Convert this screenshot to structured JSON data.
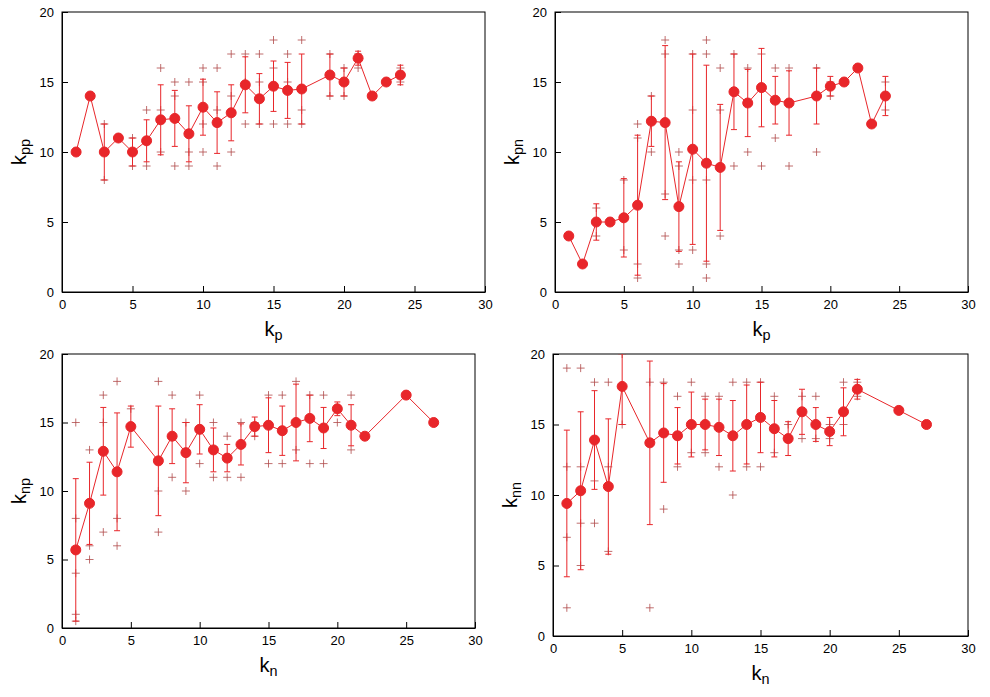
{
  "chart_data": [
    {
      "type": "line",
      "x_label": "kp",
      "y_label": "kpp",
      "color": "#e8262a",
      "marker": "circle",
      "xlim": [
        0,
        30
      ],
      "ylim": [
        0,
        20
      ],
      "xticks": [
        0,
        5,
        10,
        15,
        20,
        25,
        30
      ],
      "yticks": [
        0,
        5,
        10,
        15,
        20
      ],
      "x": [
        1,
        2,
        3,
        4,
        5,
        6,
        7,
        8,
        9,
        10,
        11,
        12,
        13,
        14,
        15,
        16,
        17,
        19,
        20,
        21,
        22,
        23,
        24
      ],
      "values": [
        10,
        14,
        10,
        11,
        10,
        10.8,
        12.3,
        12.4,
        11.3,
        13.2,
        12.1,
        12.8,
        14.8,
        13.8,
        14.7,
        14.4,
        14.5,
        15.5,
        15,
        16.7,
        14,
        15,
        15.5
      ],
      "errors": [
        0,
        0,
        2,
        0,
        1,
        1.5,
        2.5,
        2,
        2,
        2,
        2.2,
        2,
        2,
        1.8,
        1.8,
        2,
        2.5,
        1.5,
        1,
        0.5,
        0,
        0,
        0.7
      ],
      "scatter_x": [
        3,
        3,
        5,
        5,
        6,
        6,
        7,
        7,
        7,
        8,
        8,
        8,
        9,
        9,
        9,
        10,
        10,
        10,
        10,
        11,
        11,
        11,
        12,
        12,
        12,
        13,
        13,
        13,
        14,
        14,
        14,
        15,
        15,
        15,
        16,
        16,
        16,
        17,
        17,
        17,
        19,
        19,
        20,
        20,
        21,
        21,
        24,
        24
      ],
      "scatter_y": [
        8,
        12,
        9,
        11,
        9,
        13,
        10,
        16,
        13,
        9,
        15,
        14,
        9,
        15,
        10,
        10,
        15,
        16,
        12,
        9,
        16,
        13,
        10,
        17,
        14,
        12,
        17,
        15,
        12,
        17,
        15,
        12,
        18,
        16,
        12,
        17,
        15,
        12,
        18,
        13,
        14,
        17,
        14,
        16,
        16,
        17,
        15,
        16
      ]
    },
    {
      "type": "line",
      "x_label": "kp",
      "y_label": "kpn",
      "color": "#e8262a",
      "marker": "circle",
      "xlim": [
        0,
        30
      ],
      "ylim": [
        0,
        20
      ],
      "xticks": [
        0,
        5,
        10,
        15,
        20,
        25,
        30
      ],
      "yticks": [
        0,
        5,
        10,
        15,
        20
      ],
      "x": [
        1,
        2,
        3,
        4,
        5,
        6,
        7,
        8,
        9,
        10,
        11,
        12,
        13,
        14,
        15,
        16,
        17,
        19,
        20,
        21,
        22,
        23,
        24
      ],
      "values": [
        4,
        2,
        5,
        5,
        5.3,
        6.2,
        12.2,
        12.1,
        6.1,
        10.2,
        9.2,
        8.9,
        14.3,
        13.5,
        14.6,
        13.7,
        13.5,
        14,
        14.7,
        15,
        16,
        12,
        14
      ],
      "errors": [
        0,
        0,
        1.3,
        0,
        2.8,
        5,
        1.8,
        5.5,
        3.2,
        6.8,
        7,
        4.5,
        2.7,
        2.4,
        2.8,
        1.7,
        2.3,
        2,
        0.7,
        0,
        0,
        0,
        1.4
      ],
      "scatter_x": [
        3,
        3,
        5,
        5,
        6,
        6,
        6,
        6,
        7,
        7,
        8,
        8,
        8,
        8,
        9,
        9,
        9,
        9,
        10,
        10,
        10,
        10,
        11,
        11,
        11,
        11,
        11,
        12,
        12,
        12,
        13,
        13,
        14,
        14,
        15,
        15,
        16,
        16,
        17,
        17,
        19,
        19,
        20,
        20,
        24,
        24
      ],
      "scatter_y": [
        4,
        6,
        3,
        8,
        1,
        2,
        11,
        12,
        10,
        14,
        4,
        7,
        18,
        17,
        2,
        3,
        9,
        10,
        3,
        8,
        17,
        13,
        1,
        2,
        18,
        17,
        8,
        4,
        13,
        16,
        9,
        17,
        10,
        16,
        9,
        17,
        11,
        16,
        9,
        16,
        10,
        16,
        14,
        15,
        13,
        15
      ]
    },
    {
      "type": "line",
      "x_label": "kn",
      "y_label": "knp",
      "color": "#e8262a",
      "marker": "circle",
      "xlim": [
        0,
        30
      ],
      "ylim": [
        0,
        20
      ],
      "xticks": [
        0,
        5,
        10,
        15,
        20,
        25,
        30
      ],
      "yticks": [
        0,
        5,
        10,
        15,
        20
      ],
      "x": [
        1,
        2,
        3,
        4,
        5,
        7,
        8,
        9,
        10,
        11,
        12,
        13,
        14,
        15,
        16,
        17,
        18,
        19,
        20,
        21,
        22,
        25,
        27
      ],
      "values": [
        5.7,
        9.1,
        12.9,
        11.4,
        14.7,
        12.2,
        14,
        12.8,
        14.5,
        13,
        12.4,
        13.4,
        14.7,
        14.8,
        14.4,
        15,
        15.3,
        14.6,
        16,
        14.8,
        14,
        17,
        15
      ],
      "errors": [
        5.2,
        3,
        3.2,
        4.3,
        1.5,
        4,
        2,
        2.2,
        1.8,
        1.6,
        1,
        1.5,
        0.7,
        2,
        1.8,
        2.8,
        1.7,
        1.5,
        0.5,
        1.5,
        0,
        0,
        0
      ],
      "scatter_x": [
        1,
        1,
        1,
        1,
        1,
        2,
        2,
        2,
        3,
        3,
        3,
        4,
        4,
        4,
        5,
        7,
        7,
        7,
        8,
        8,
        9,
        9,
        10,
        10,
        11,
        11,
        12,
        12,
        13,
        13,
        14,
        14,
        15,
        15,
        16,
        16,
        17,
        17,
        18,
        18,
        19,
        19,
        20,
        20,
        21,
        21
      ],
      "scatter_y": [
        0.5,
        1,
        4,
        8,
        15,
        5,
        6,
        13,
        7,
        17,
        15,
        6,
        18,
        8,
        16,
        7,
        18,
        10,
        11,
        17,
        10,
        15,
        12,
        17,
        11,
        15,
        11,
        14,
        11,
        15,
        14,
        15,
        12,
        17,
        12,
        17,
        13,
        18,
        12,
        17,
        12,
        17,
        15,
        16,
        13,
        17
      ]
    },
    {
      "type": "line",
      "x_label": "kn",
      "y_label": "knn",
      "color": "#e8262a",
      "marker": "circle",
      "xlim": [
        0,
        30
      ],
      "ylim": [
        0,
        20
      ],
      "xticks": [
        0,
        5,
        10,
        15,
        20,
        25,
        30
      ],
      "yticks": [
        0,
        5,
        10,
        15,
        20
      ],
      "x": [
        1,
        2,
        3,
        4,
        5,
        7,
        8,
        9,
        10,
        11,
        12,
        13,
        14,
        15,
        16,
        17,
        18,
        19,
        20,
        21,
        22,
        25,
        27
      ],
      "values": [
        9.4,
        10.3,
        13.9,
        10.6,
        17.7,
        13.7,
        14.4,
        14.2,
        15,
        15,
        14.8,
        14.2,
        15,
        15.5,
        14.7,
        14,
        15.9,
        15,
        14.5,
        15.9,
        17.5,
        16,
        15
      ],
      "errors": [
        5.2,
        5.6,
        3.5,
        4.8,
        2.7,
        5.8,
        3.5,
        2,
        2.3,
        1.8,
        2,
        2.5,
        2.8,
        2.5,
        2,
        1.2,
        1.6,
        1.2,
        1,
        1.7,
        0.7,
        0,
        0
      ],
      "scatter_x": [
        1,
        1,
        1,
        1,
        2,
        2,
        2,
        2,
        3,
        3,
        3,
        4,
        4,
        4,
        5,
        5,
        7,
        7,
        8,
        8,
        9,
        9,
        10,
        10,
        11,
        11,
        12,
        12,
        13,
        13,
        14,
        14,
        15,
        15,
        16,
        16,
        17,
        17,
        18,
        18,
        19,
        19,
        20,
        20,
        21,
        21,
        22,
        22
      ],
      "scatter_y": [
        2,
        7,
        12,
        19,
        5,
        8,
        12,
        19,
        8,
        18,
        11,
        6,
        12,
        18,
        15,
        20,
        2,
        18,
        9,
        18,
        12,
        17,
        13,
        18,
        13,
        17,
        12,
        17,
        10,
        18,
        12,
        18,
        12,
        18,
        13,
        17,
        14,
        15,
        14,
        17,
        14,
        17,
        14,
        15,
        15,
        18,
        17,
        18
      ]
    }
  ]
}
